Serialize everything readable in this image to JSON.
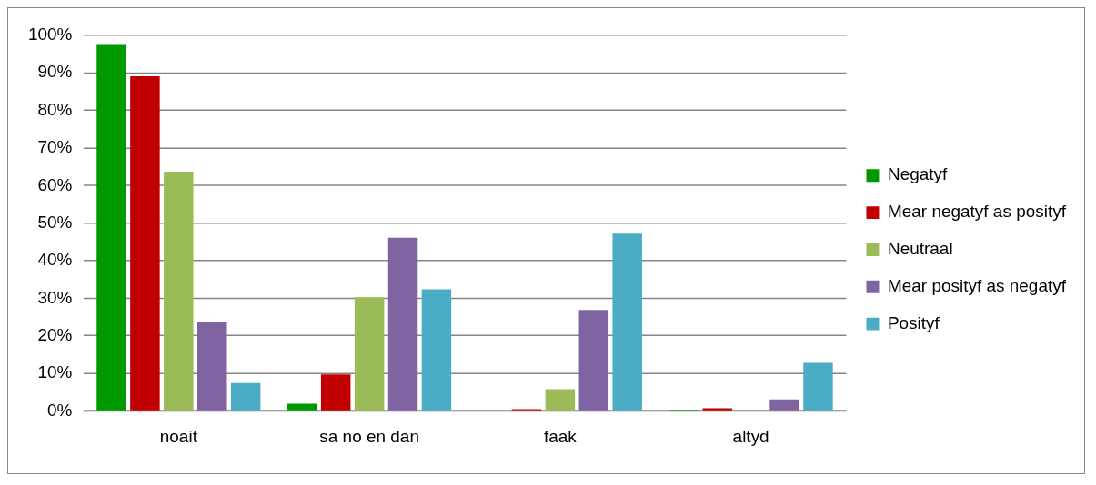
{
  "chart_data": {
    "type": "bar",
    "categories": [
      "noait",
      "sa no en dan",
      "faak",
      "altyd"
    ],
    "series": [
      {
        "name": "Negatyf",
        "color": "#009900",
        "values": [
          97.7,
          1.9,
          0,
          0.3
        ]
      },
      {
        "name": "Mear negatyf as posityf",
        "color": "#c00000",
        "values": [
          89.1,
          9.7,
          0.5,
          0.7
        ]
      },
      {
        "name": "Neutraal",
        "color": "#9bbb59",
        "values": [
          63.7,
          30.3,
          5.8,
          0
        ]
      },
      {
        "name": "Mear posityf as negatyf",
        "color": "#8064a2",
        "values": [
          23.8,
          46.1,
          26.9,
          3.1
        ]
      },
      {
        "name": "Posityf",
        "color": "#4bacc6",
        "values": [
          7.4,
          32.4,
          47.2,
          12.8
        ]
      }
    ],
    "ylim": [
      0,
      100
    ],
    "yticks": [
      {
        "value": 0,
        "label": "0%"
      },
      {
        "value": 10,
        "label": "10%"
      },
      {
        "value": 20,
        "label": "20%"
      },
      {
        "value": 30,
        "label": "30%"
      },
      {
        "value": 40,
        "label": "40%"
      },
      {
        "value": 50,
        "label": "50%"
      },
      {
        "value": 60,
        "label": "60%"
      },
      {
        "value": 70,
        "label": "70%"
      },
      {
        "value": 80,
        "label": "80%"
      },
      {
        "value": 90,
        "label": "90%"
      },
      {
        "value": 100,
        "label": "100%"
      }
    ],
    "grid": "y",
    "legend": "right"
  }
}
